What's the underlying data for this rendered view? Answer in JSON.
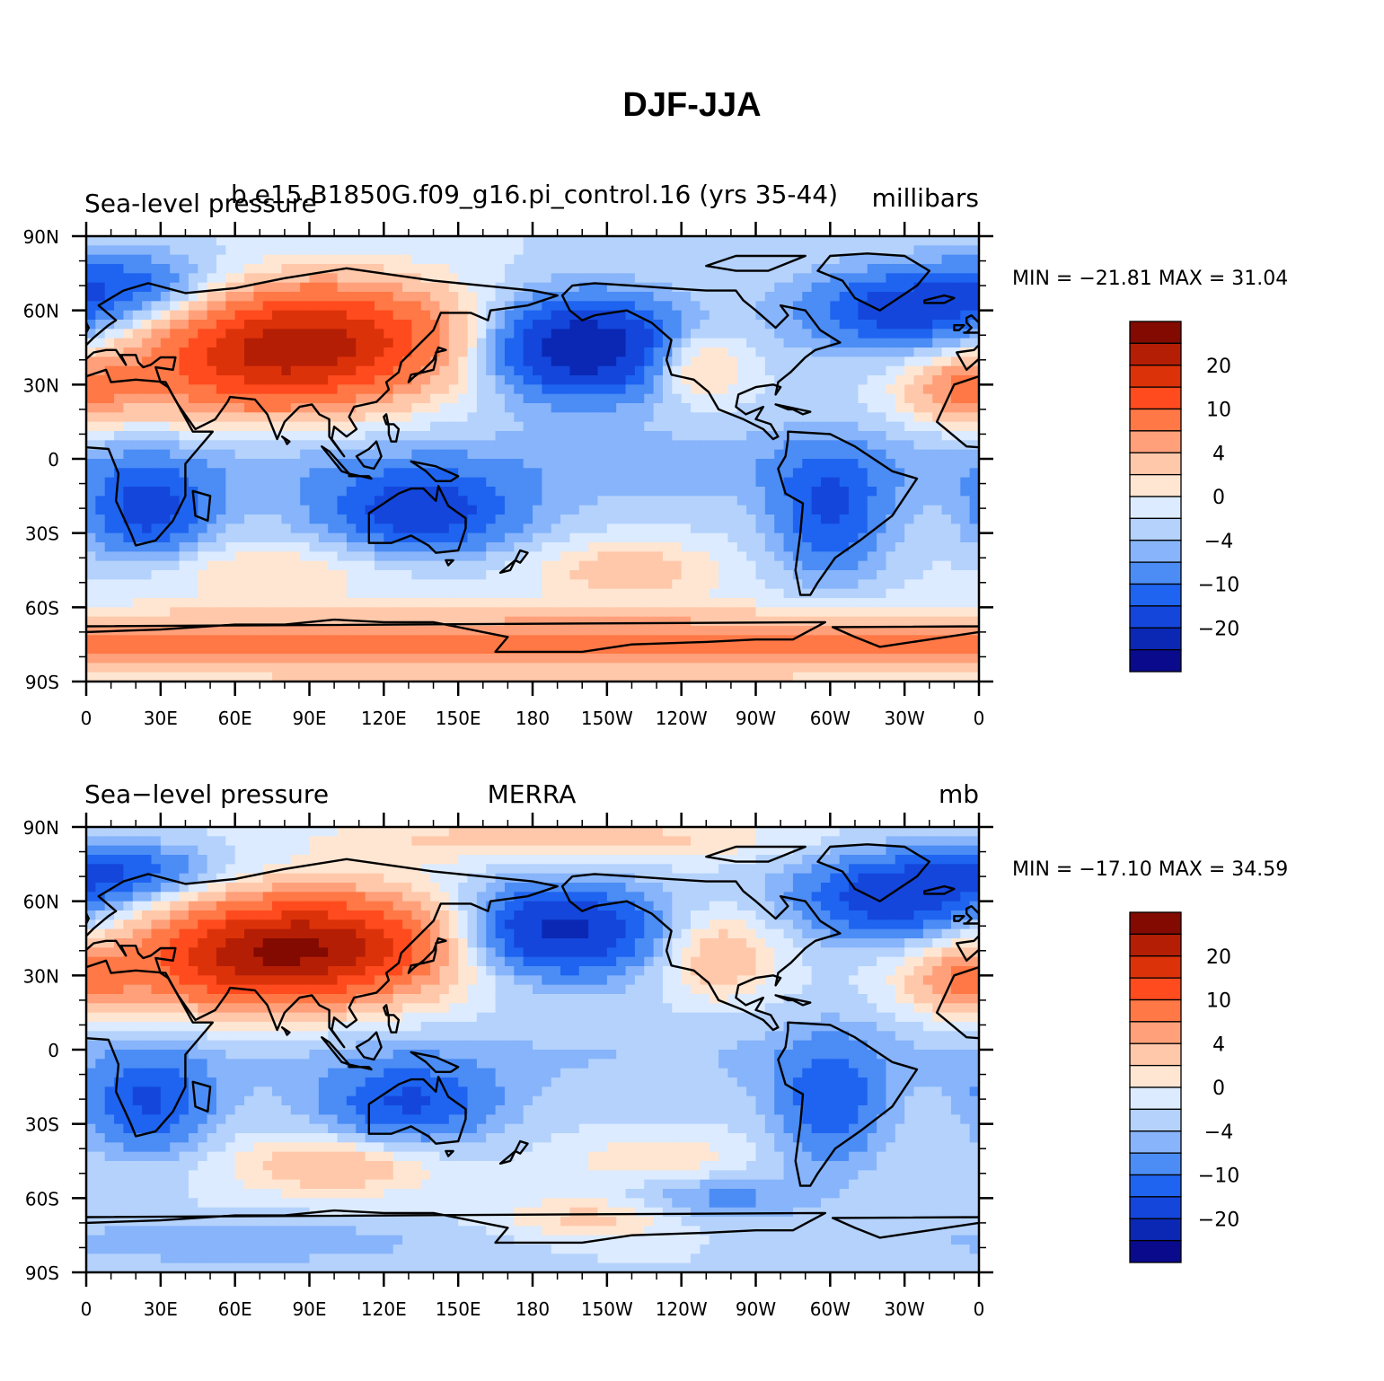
{
  "figure": {
    "title": "DJF-JJA"
  },
  "colors": {
    "levels": [
      "#0a0a8c",
      "#0a28b4",
      "#1446dc",
      "#1e64f0",
      "#4b8cf5",
      "#87b4fa",
      "#b4d2fc",
      "#dcebff",
      "#ffe6d2",
      "#ffc8aa",
      "#ffa07a",
      "#ff7846",
      "#ff4b1e",
      "#dc320a",
      "#b41e05",
      "#820a00"
    ]
  },
  "chart_data": [
    {
      "type": "heatmap",
      "left_title": "Sea-level pressure",
      "center_title": "b.e15.B1850G.f09_g16.pi_control.16 (yrs 35-44)",
      "right_title": "millibars",
      "min_max_text": "MIN = −21.81  MAX =   31.04",
      "ylim": [
        -90,
        90
      ],
      "xlim": [
        0,
        360
      ],
      "y_ticks": [
        "90N",
        "60N",
        "30N",
        "0",
        "30S",
        "60S",
        "90S"
      ],
      "x_ticks": [
        "0",
        "30E",
        "60E",
        "90E",
        "120E",
        "150E",
        "180",
        "150W",
        "120W",
        "90W",
        "60W",
        "30W",
        "0"
      ],
      "colorbar_labels": [
        "20",
        "10",
        "4",
        "0",
        "−4",
        "−10",
        "−20"
      ],
      "features": [
        {
          "name": "siberian-high",
          "lon": 95,
          "lat": 48,
          "amp": 24,
          "slon": 40,
          "slat": 16
        },
        {
          "name": "asia-high-ext",
          "lon": 60,
          "lat": 35,
          "amp": 10,
          "slon": 35,
          "slat": 15
        },
        {
          "name": "aleutian-low",
          "lon": 200,
          "lat": 45,
          "amp": -20,
          "slon": 28,
          "slat": 14
        },
        {
          "name": "icelandic-low",
          "lon": 330,
          "lat": 60,
          "amp": -12,
          "slon": 30,
          "slat": 12
        },
        {
          "name": "north-atlantic-low",
          "lon": 20,
          "lat": 70,
          "amp": -8,
          "slon": 25,
          "slat": 10
        },
        {
          "name": "north-america-high",
          "lon": 245,
          "lat": 38,
          "amp": 8,
          "slon": 14,
          "slat": 10
        },
        {
          "name": "azores-high",
          "lon": 355,
          "lat": 28,
          "amp": 10,
          "slon": 18,
          "slat": 10
        },
        {
          "name": "africa-low",
          "lon": 25,
          "lat": -22,
          "amp": -11,
          "slon": 18,
          "slat": 14
        },
        {
          "name": "australia-low",
          "lon": 135,
          "lat": -22,
          "amp": -12,
          "slon": 28,
          "slat": 12
        },
        {
          "name": "south-america-low",
          "lon": 300,
          "lat": -22,
          "amp": -10,
          "slon": 16,
          "slat": 18
        },
        {
          "name": "south-pacific-high",
          "lon": 218,
          "lat": -45,
          "amp": 6,
          "slon": 25,
          "slat": 8
        },
        {
          "name": "indian-ocean-high",
          "lon": 70,
          "lat": -45,
          "amp": 4,
          "slon": 40,
          "slat": 8
        },
        {
          "name": "antarctic-belt",
          "lon": 180,
          "lat": -75,
          "amp": 12,
          "slon": 400,
          "slat": 9
        },
        {
          "name": "tropical-low",
          "lon": 180,
          "lat": -3,
          "amp": -3,
          "slon": 400,
          "slat": 12
        }
      ]
    },
    {
      "type": "heatmap",
      "left_title": "Sea−level pressure",
      "center_title": "MERRA",
      "right_title": "mb",
      "min_max_text": "MIN = −17.10  MAX =   34.59",
      "ylim": [
        -90,
        90
      ],
      "xlim": [
        0,
        360
      ],
      "y_ticks": [
        "90N",
        "60N",
        "30N",
        "0",
        "30S",
        "60S",
        "90S"
      ],
      "x_ticks": [
        "0",
        "30E",
        "60E",
        "90E",
        "120E",
        "150E",
        "180",
        "150W",
        "120W",
        "90W",
        "60W",
        "30W",
        "0"
      ],
      "colorbar_labels": [
        "20",
        "10",
        "4",
        "0",
        "−4",
        "−10",
        "−20"
      ],
      "features": [
        {
          "name": "siberian-high",
          "lon": 95,
          "lat": 42,
          "amp": 26,
          "slon": 38,
          "slat": 15
        },
        {
          "name": "asia-high-ext",
          "lon": 55,
          "lat": 35,
          "amp": 12,
          "slon": 30,
          "slat": 14
        },
        {
          "name": "aleutian-low",
          "lon": 190,
          "lat": 48,
          "amp": -17,
          "slon": 28,
          "slat": 13
        },
        {
          "name": "icelandic-low",
          "lon": 325,
          "lat": 62,
          "amp": -13,
          "slon": 28,
          "slat": 12
        },
        {
          "name": "north-atlantic-low",
          "lon": 15,
          "lat": 72,
          "amp": -9,
          "slon": 25,
          "slat": 8
        },
        {
          "name": "north-america-high",
          "lon": 255,
          "lat": 38,
          "amp": 7,
          "slon": 16,
          "slat": 12
        },
        {
          "name": "azores-high",
          "lon": 355,
          "lat": 28,
          "amp": 10,
          "slon": 18,
          "slat": 10
        },
        {
          "name": "arctic-high",
          "lon": 190,
          "lat": 85,
          "amp": 6,
          "slon": 60,
          "slat": 6
        },
        {
          "name": "africa-low",
          "lon": 25,
          "lat": -22,
          "amp": -10,
          "slon": 18,
          "slat": 14
        },
        {
          "name": "australia-low",
          "lon": 130,
          "lat": -22,
          "amp": -10,
          "slon": 25,
          "slat": 12
        },
        {
          "name": "south-america-low",
          "lon": 300,
          "lat": -22,
          "amp": -9,
          "slon": 16,
          "slat": 18
        },
        {
          "name": "indian-ocean-high",
          "lon": 100,
          "lat": -47,
          "amp": 7,
          "slon": 28,
          "slat": 8
        },
        {
          "name": "south-pacific-high",
          "lon": 230,
          "lat": -45,
          "amp": 4,
          "slon": 25,
          "slat": 7
        },
        {
          "name": "south-pacific-low",
          "lon": 255,
          "lat": -60,
          "amp": -5,
          "slon": 25,
          "slat": 7
        },
        {
          "name": "amundsen-high",
          "lon": 205,
          "lat": -68,
          "amp": 5,
          "slon": 25,
          "slat": 6
        },
        {
          "name": "antarctic-low",
          "lon": 60,
          "lat": -78,
          "amp": -4,
          "slon": 60,
          "slat": 6
        },
        {
          "name": "tropical-low",
          "lon": 180,
          "lat": -3,
          "amp": -2,
          "slon": 400,
          "slat": 12
        }
      ]
    }
  ]
}
